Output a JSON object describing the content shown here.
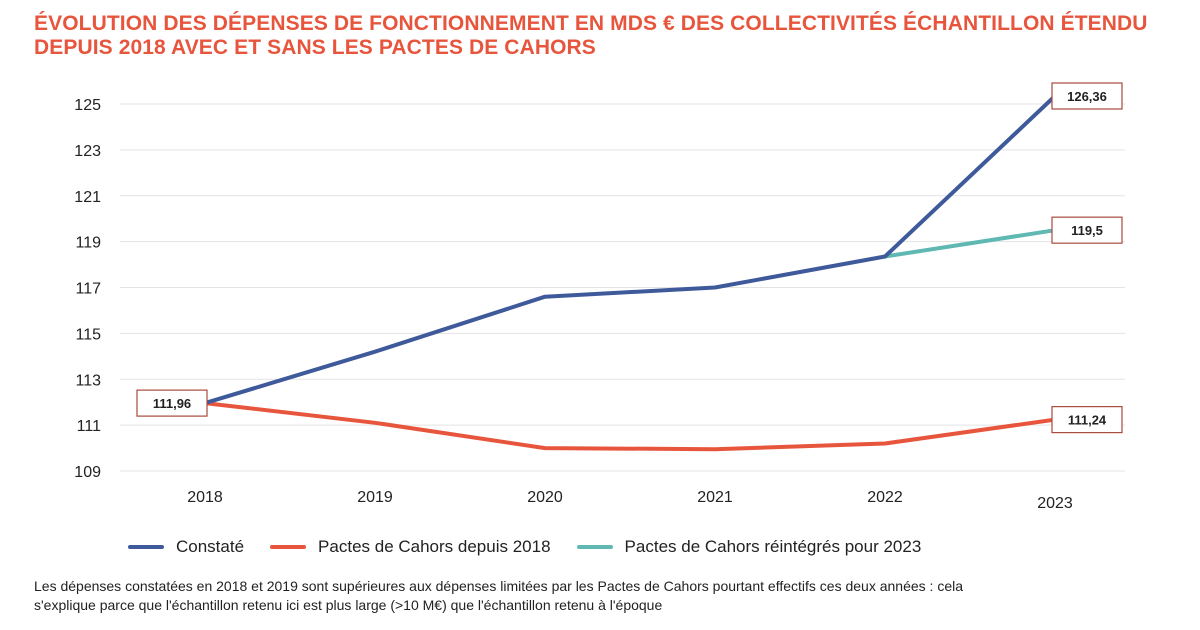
{
  "title_lines": [
    "ÉVOLUTION DES DÉPENSES DE FONCTIONNEMENT EN MDS € DES COLLECTIVITÉS ÉCHANTILLON ÉTENDU",
    "DEPUIS 2018 AVEC ET SANS LES PACTES DE CAHORS"
  ],
  "note_lines": [
    "Les dépenses constatées en 2018 et 2019 sont supérieures aux dépenses limitées par les Pactes de Cahors pourtant effectifs ces deux années : cela",
    "s'explique parce que l'échantillon retenu ici est plus large (>10 M€) que l'échantillon retenu à l'époque"
  ],
  "colors": {
    "title": "#e8553d",
    "constate": "#3f5a9a",
    "cahors": "#e8553d",
    "reintegres": "#5fb8b2",
    "grid": "#e3e3e3"
  },
  "chart_data": {
    "type": "line",
    "categories": [
      "2018",
      "2019",
      "2020",
      "2021",
      "2022",
      "2023"
    ],
    "ylim": [
      109,
      125
    ],
    "yticks": [
      109,
      111,
      113,
      115,
      117,
      119,
      121,
      123,
      125
    ],
    "grid": "horizontal",
    "legend_position": "bottom-left",
    "series": [
      {
        "name": "Constaté",
        "color": "#3f5a9a",
        "values": [
          111.96,
          114.2,
          116.6,
          117.0,
          118.35,
          126.36
        ]
      },
      {
        "name": "Pactes de Cahors depuis 2018",
        "color": "#e8553d",
        "values": [
          111.96,
          111.1,
          110.0,
          109.95,
          110.2,
          111.24
        ]
      },
      {
        "name": "Pactes de Cahors réintégrés pour 2023",
        "color": "#5fb8b2",
        "values": [
          null,
          null,
          null,
          null,
          118.35,
          119.5
        ]
      }
    ],
    "data_labels": [
      {
        "text": "111,96",
        "category": "2018",
        "value": 111.96,
        "side": "left"
      },
      {
        "text": "126,36",
        "category": "2023",
        "value": 126.36,
        "side": "right"
      },
      {
        "text": "119,5",
        "category": "2023",
        "value": 119.5,
        "side": "right"
      },
      {
        "text": "111,24",
        "category": "2023",
        "value": 111.24,
        "side": "right"
      }
    ]
  }
}
